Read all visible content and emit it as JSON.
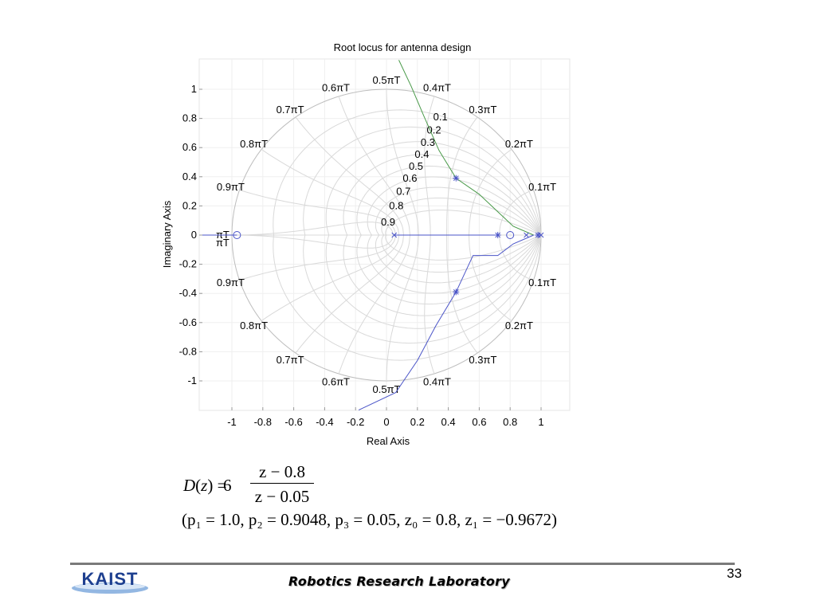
{
  "chart_data": {
    "type": "line",
    "title": "Root locus for antenna design",
    "xlabel": "Real Axis",
    "ylabel": "Imaginary Axis",
    "xlim": [
      -1.2,
      1.2
    ],
    "ylim": [
      -1.2,
      1.2
    ],
    "xticks": [
      -1,
      -0.8,
      -0.6,
      -0.4,
      -0.2,
      0,
      0.2,
      0.4,
      0.6,
      0.8,
      1
    ],
    "xtick_labels": [
      "-1",
      "-0.8",
      "-0.6",
      "-0.4",
      "-0.2",
      "0",
      "0.2",
      "0.4",
      "0.6",
      "0.8",
      "1"
    ],
    "yticks": [
      1,
      0.8,
      0.6,
      0.4,
      0.2,
      0,
      -0.2,
      -0.4,
      -0.6,
      -0.8,
      -1
    ],
    "ytick_labels": [
      "1",
      "0.8",
      "0.6",
      "0.4",
      "0.2",
      "0",
      "-0.2",
      "-0.4",
      "-0.6",
      "-0.8",
      "-1"
    ],
    "grid": "zgrid",
    "damping_labels": [
      "0.1",
      "0.2",
      "0.3",
      "0.4",
      "0.5",
      "0.6",
      "0.7",
      "0.8",
      "0.9"
    ],
    "frequency_labels": [
      {
        "label": "0.1πT",
        "k": 0.1
      },
      {
        "label": "0.2πT",
        "k": 0.2
      },
      {
        "label": "0.3πT",
        "k": 0.3
      },
      {
        "label": "0.4πT",
        "k": 0.4
      },
      {
        "label": "0.5πT",
        "k": 0.5
      },
      {
        "label": "0.6πT",
        "k": 0.6
      },
      {
        "label": "0.7πT",
        "k": 0.7
      },
      {
        "label": "0.8πT",
        "k": 0.8
      },
      {
        "label": "0.9πT",
        "k": 0.9
      },
      {
        "label": "πT",
        "k": 1.0
      }
    ],
    "poles": [
      [
        1.0,
        0
      ],
      [
        0.9048,
        0
      ],
      [
        0.05,
        0
      ]
    ],
    "zeros": [
      [
        0.8,
        0
      ],
      [
        -0.9672,
        0
      ]
    ],
    "closed_loop_poles": [
      [
        0.45,
        0.39
      ],
      [
        0.45,
        -0.39
      ],
      [
        0.72,
        0
      ],
      [
        0.98,
        0
      ]
    ],
    "series": [
      {
        "branch": "upper",
        "color": "#4a9a4a",
        "points": [
          [
            0.952,
            0
          ],
          [
            0.82,
            0.06
          ],
          [
            0.72,
            0.16
          ],
          [
            0.6,
            0.28
          ],
          [
            0.45,
            0.39
          ],
          [
            0.34,
            0.58
          ],
          [
            0.24,
            0.82
          ],
          [
            0.16,
            1.02
          ],
          [
            0.08,
            1.2
          ]
        ]
      },
      {
        "branch": "lower",
        "color": "#4b55c8",
        "points": [
          [
            0.952,
            0
          ],
          [
            0.82,
            -0.06
          ],
          [
            0.72,
            -0.14
          ],
          [
            0.56,
            -0.14
          ],
          [
            0.45,
            -0.39
          ],
          [
            0.32,
            -0.62
          ],
          [
            0.2,
            -0.86
          ],
          [
            0.06,
            -1.08
          ],
          [
            -0.18,
            -1.2
          ]
        ]
      },
      {
        "branch": "real-axis-left",
        "color": "#4b55c8",
        "points": [
          [
            -1.2,
            0
          ],
          [
            -0.9672,
            0
          ]
        ]
      },
      {
        "branch": "real-axis-right",
        "color": "#4b55c8",
        "points": [
          [
            0.05,
            0
          ],
          [
            0.72,
            0
          ]
        ]
      }
    ]
  },
  "formula": {
    "lhs_func": "D",
    "lhs_var": "z",
    "gain": "6",
    "numerator": "z − 0.8",
    "denominator": "z − 0.05",
    "params": "(p₁ = 1.0,  p₂ = 0.9048,  p₃ = 0.05,  z₀ = 0.8,  z₁ = −0.9672)"
  },
  "footer": {
    "page_number": "33",
    "lab_name": "Robotics Research Laboratory",
    "logo_text": "KAIST",
    "bar_color": "#7a7a7a",
    "logo_color": "#1d3f8f"
  }
}
